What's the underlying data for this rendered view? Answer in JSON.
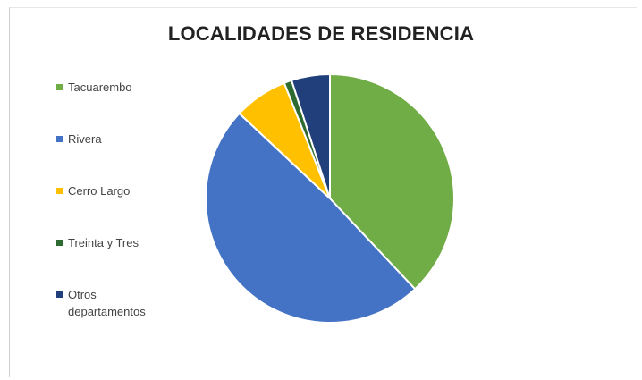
{
  "chart_data": {
    "type": "pie",
    "title": "LOCALIDADES DE RESIDENCIA",
    "categories": [
      "Tacuarembo",
      "Rivera",
      "Cerro Largo",
      "Treinta y Tres",
      "Otros departamentos"
    ],
    "values": [
      38,
      49,
      7,
      1,
      5
    ],
    "colors": [
      "#70ad47",
      "#4472c4",
      "#ffc000",
      "#2e6b30",
      "#213f7a"
    ],
    "legend_position": "left",
    "start_angle": "12 o'clock",
    "direction": "clockwise"
  }
}
